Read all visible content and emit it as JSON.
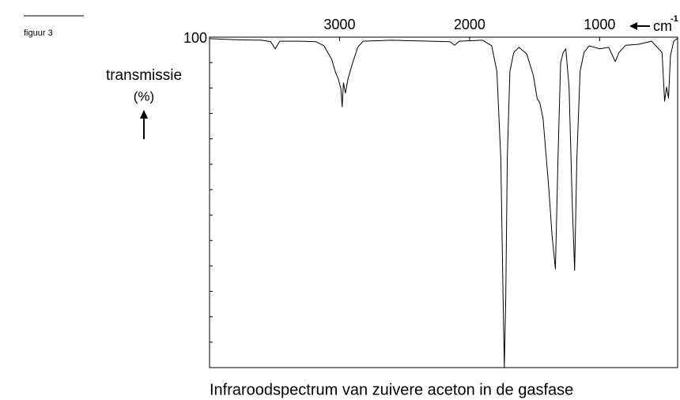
{
  "figure_label": "figuur 3",
  "chart_data": {
    "type": "line",
    "title": "Infraroodspectrum van zuivere aceton in de gasfase",
    "ylabel": [
      "transmissie",
      "(%)"
    ],
    "x_unit": {
      "base": "cm",
      "exponent": "-1"
    },
    "color": "#000000",
    "xlim": [
      4000,
      400
    ],
    "xticks": [
      3000,
      2000,
      1000
    ],
    "ylim": [
      35,
      100
    ],
    "yticks": [
      100
    ],
    "yminorticks": [
      95,
      90,
      85,
      80,
      75,
      70,
      65,
      60,
      55,
      50,
      45,
      40
    ],
    "x": [
      4000,
      3800,
      3600,
      3530,
      3495,
      3460,
      3300,
      3180,
      3120,
      3060,
      3030,
      3010,
      2990,
      2980,
      2970,
      2955,
      2935,
      2900,
      2860,
      2820,
      2600,
      2300,
      2150,
      2115,
      2080,
      1900,
      1830,
      1790,
      1760,
      1745,
      1733,
      1722,
      1710,
      1690,
      1660,
      1620,
      1560,
      1510,
      1480,
      1460,
      1435,
      1390,
      1365,
      1340,
      1320,
      1300,
      1280,
      1260,
      1235,
      1210,
      1192,
      1175,
      1150,
      1120,
      1080,
      1000,
      930,
      880,
      850,
      800,
      700,
      600,
      520,
      500,
      485,
      470,
      455,
      430,
      400
    ],
    "values": [
      99.7,
      99.5,
      99.4,
      99.1,
      97.7,
      99.2,
      99.2,
      99.1,
      98.3,
      95.6,
      93.0,
      91.8,
      89.9,
      86.3,
      91.0,
      89.0,
      91.8,
      94.9,
      98.0,
      99.2,
      99.4,
      99.2,
      99.1,
      98.4,
      99.2,
      99.4,
      98.3,
      93.3,
      76.2,
      52.9,
      35.0,
      48.2,
      76.2,
      93.3,
      97.0,
      98.0,
      96.7,
      92.5,
      87.9,
      87.1,
      84.0,
      70.0,
      60.7,
      54.4,
      76.2,
      94.9,
      97.0,
      97.7,
      90.2,
      66.9,
      54.1,
      76.2,
      93.3,
      97.0,
      98.3,
      97.7,
      98.0,
      95.2,
      97.0,
      98.4,
      98.6,
      99.2,
      97.0,
      87.4,
      90.2,
      88.0,
      96.4,
      99.2,
      99.8
    ]
  }
}
